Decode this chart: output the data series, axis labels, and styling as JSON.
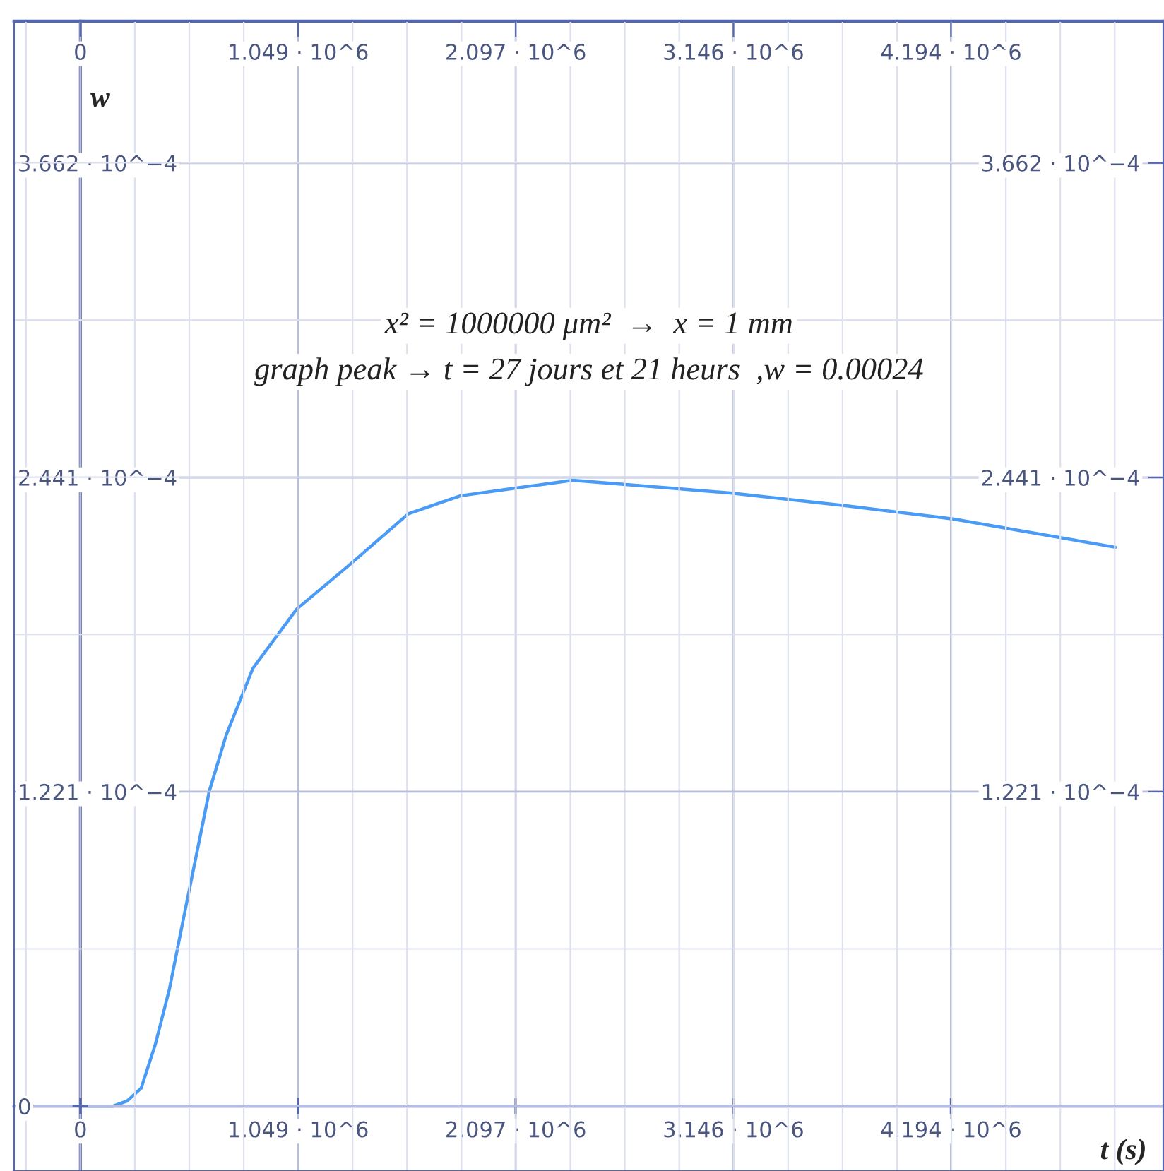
{
  "chart_data": {
    "type": "line",
    "xlabel": "t (s)",
    "ylabel": "w",
    "annotations": [
      "x² = 1000000 μm²  →  x = 1 mm",
      "graph peak → t = 27 jours et 21 heurs  ,w = 0.00024"
    ],
    "x": [
      0,
      157000,
      225000,
      293000,
      361000,
      429000,
      497000,
      565000,
      620000,
      702000,
      831000,
      1042000,
      1294000,
      1580000,
      1832000,
      2098000,
      2371000,
      2840000,
      3140000,
      3700000,
      4203000,
      4986000
    ],
    "series": [
      {
        "color": "#4a9bf5",
        "values": [
          0,
          0,
          2e-06,
          7e-06,
          2.4e-05,
          4.55e-05,
          7.3e-05,
          0.0001,
          0.000122,
          0.000144,
          0.00017,
          0.000193,
          0.00021,
          0.00023,
          0.000237,
          0.00024,
          0.000243,
          0.00024,
          0.000238,
          0.000233,
          0.000228,
          0.000217
        ]
      }
    ],
    "xlim": [
      -320000,
      5220000
    ],
    "xticks": [
      {
        "value": 0,
        "label": "0"
      },
      {
        "value": 1049000,
        "label": "1.049 · 10^6"
      },
      {
        "value": 2097000,
        "label": "2.097 · 10^6"
      },
      {
        "value": 3146000,
        "label": "3.146 · 10^6"
      },
      {
        "value": 4194000,
        "label": "4.194 · 10^6"
      }
    ],
    "x2lim": [
      -320000,
      5220000
    ],
    "x2ticks": [
      {
        "value": 0,
        "label": "0"
      },
      {
        "value": 1049000,
        "label": "1.049 · 10^6"
      },
      {
        "value": 2097000,
        "label": "2.097 · 10^6"
      },
      {
        "value": 3146000,
        "label": "3.146 · 10^6"
      },
      {
        "value": 4194000,
        "label": "4.194 · 10^6"
      }
    ],
    "ylim": [
      -2.52e-05,
      0.0004213
    ],
    "yticks": [
      {
        "value": 0,
        "label": "0"
      },
      {
        "value": 0.0001221,
        "label": "1.221 · 10^−4"
      },
      {
        "value": 0.0002441,
        "label": "2.441 · 10^−4"
      },
      {
        "value": 0.0003662,
        "label": "3.662 · 10^−4"
      }
    ],
    "y2lim": [
      -2.52e-05,
      0.0004213
    ],
    "y2ticks": [
      {
        "value": 0.0001221,
        "label": "1.221 · 10^−4"
      },
      {
        "value": 0.0002441,
        "label": "2.441 · 10^−4"
      },
      {
        "value": 0.0003662,
        "label": "3.662 · 10^−4"
      }
    ],
    "grid": true,
    "legend": false,
    "marker": "none",
    "line_style": "solid"
  }
}
